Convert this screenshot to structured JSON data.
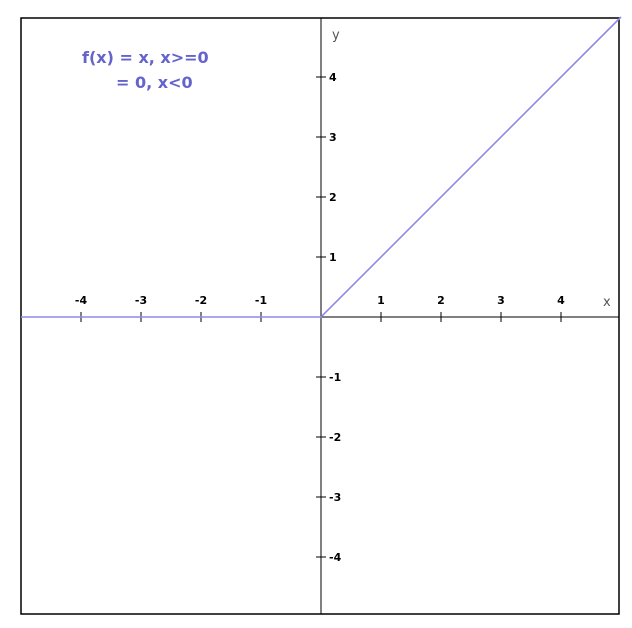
{
  "chart_data": {
    "type": "line",
    "title": "",
    "annotation": [
      "f(x) = x, x>=0",
      "= 0, x<0"
    ],
    "xlabel": "x",
    "ylabel": "y",
    "xlim": [
      -5,
      5
    ],
    "ylim": [
      -5,
      5
    ],
    "xticks": [
      -4,
      -3,
      -2,
      -1,
      1,
      2,
      3,
      4
    ],
    "yticks": [
      4,
      3,
      2,
      1,
      -1,
      -2,
      -3,
      -4
    ],
    "grid": false,
    "series": [
      {
        "color": "#8c8ce6",
        "x": [
          -5,
          0,
          5
        ],
        "y": [
          0,
          0,
          5
        ]
      }
    ]
  }
}
